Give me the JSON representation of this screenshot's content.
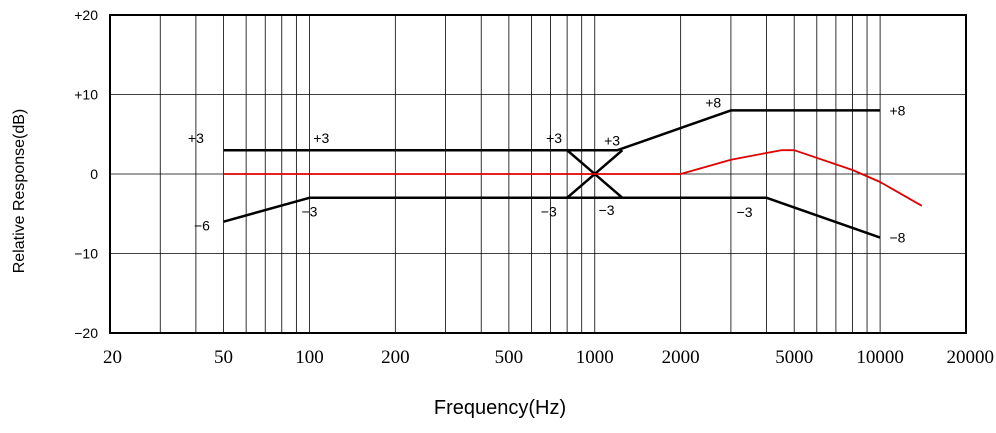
{
  "chart_data": {
    "type": "line",
    "title": "",
    "xlabel": "Frequency(Hz)",
    "ylabel": "Relative Response(dB)",
    "x_scale": "log",
    "xlim": [
      20,
      20000
    ],
    "ylim": [
      -20,
      20
    ],
    "grid": true,
    "x_ticks": [
      20,
      50,
      100,
      200,
      500,
      1000,
      2000,
      5000,
      10000,
      20000
    ],
    "x_tick_labels": [
      "20",
      "50",
      "100",
      "200",
      "500",
      "1000",
      "2000",
      "5000",
      "10000",
      "20000"
    ],
    "y_ticks": [
      20,
      10,
      0,
      -10,
      -20
    ],
    "y_tick_labels": [
      "+20",
      "+10",
      "0",
      "−10",
      "−20"
    ],
    "series": [
      {
        "color": "#000000",
        "x": [
          50,
          800,
          1200,
          3000,
          10000
        ],
        "y": [
          3,
          3,
          3,
          8,
          8
        ]
      },
      {
        "color": "#000000",
        "x": [
          50,
          100,
          800,
          1200,
          4000,
          10000
        ],
        "y": [
          -6,
          -3,
          -3,
          -3,
          -3,
          -8
        ]
      },
      {
        "color": "#000000",
        "x": [
          800,
          1250
        ],
        "y": [
          3,
          -3
        ]
      },
      {
        "color": "#000000",
        "x": [
          800,
          1250
        ],
        "y": [
          -3,
          3
        ]
      },
      {
        "color": "#e00000",
        "x": [
          50,
          2000,
          3000,
          4500,
          5000,
          8000,
          10000,
          14000
        ],
        "y": [
          0,
          0,
          1.8,
          3,
          3,
          0.5,
          -1,
          -4
        ]
      }
    ],
    "annotations": [
      {
        "text": "+3",
        "x": 40,
        "y": 4.5
      },
      {
        "text": "+3",
        "x": 110,
        "y": 4.5
      },
      {
        "text": "+3",
        "x": 720,
        "y": 4.5
      },
      {
        "text": "+3",
        "x": 1150,
        "y": 4.2
      },
      {
        "text": "+8",
        "x": 2600,
        "y": 9
      },
      {
        "text": "+8",
        "x": 11500,
        "y": 8
      },
      {
        "text": "−6",
        "x": 42,
        "y": -6.5
      },
      {
        "text": "−3",
        "x": 100,
        "y": -4.7
      },
      {
        "text": "−3",
        "x": 690,
        "y": -4.7
      },
      {
        "text": "−3",
        "x": 1100,
        "y": -4.5
      },
      {
        "text": "−3",
        "x": 3350,
        "y": -4.8
      },
      {
        "text": "−8",
        "x": 11500,
        "y": -8
      }
    ]
  }
}
